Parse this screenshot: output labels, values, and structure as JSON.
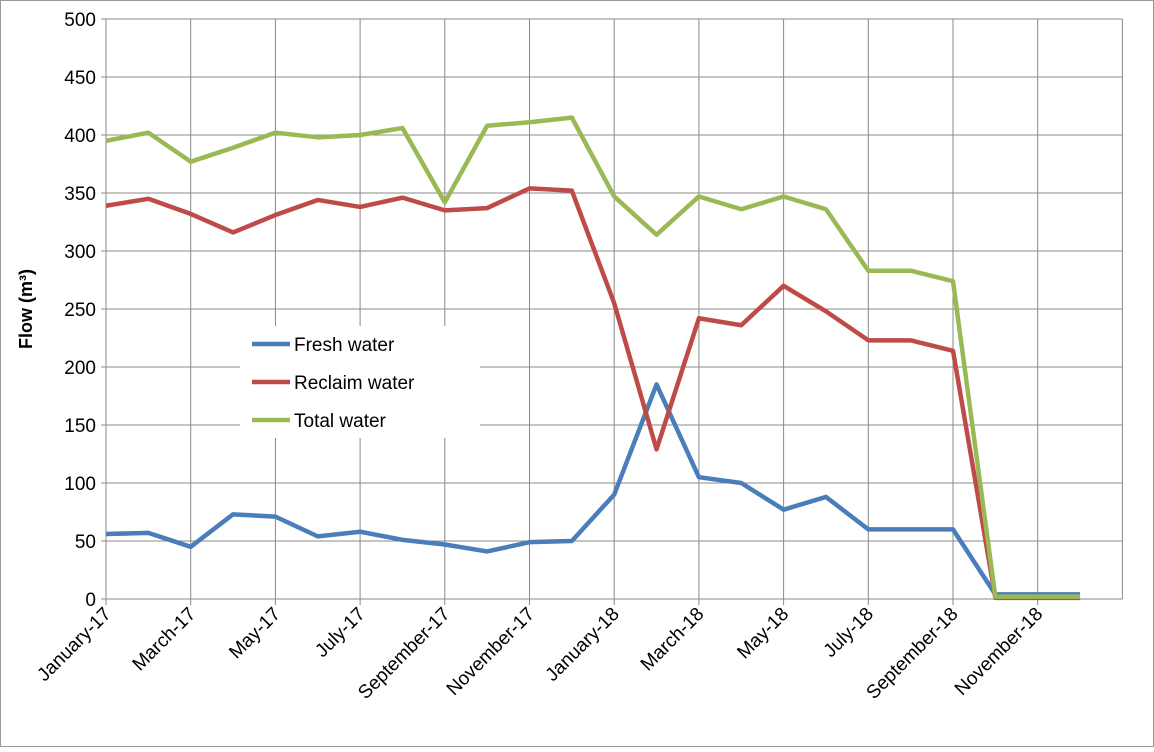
{
  "chart_data": {
    "type": "line",
    "ylabel": "Flow (m³)",
    "categories": [
      "January-17",
      null,
      "March-17",
      null,
      "May-17",
      null,
      "July-17",
      null,
      "September-17",
      null,
      "November-17",
      null,
      "January-18",
      null,
      "March-18",
      null,
      "May-18",
      null,
      "July-18",
      null,
      "September-18",
      null,
      "November-18",
      null
    ],
    "series": [
      {
        "name": "Fresh water",
        "color": "#4a7ebb",
        "values": [
          56,
          57,
          45,
          73,
          71,
          54,
          58,
          51,
          47,
          41,
          49,
          50,
          90,
          185,
          105,
          100,
          77,
          88,
          60,
          60,
          60,
          4,
          4,
          4
        ]
      },
      {
        "name": "Reclaim water",
        "color": "#be4b48",
        "values": [
          339,
          345,
          332,
          316,
          331,
          344,
          338,
          346,
          335,
          337,
          354,
          352,
          255,
          129,
          242,
          236,
          270,
          248,
          223,
          223,
          214,
          1,
          1,
          1
        ]
      },
      {
        "name": "Total water",
        "color": "#98b954",
        "values": [
          395,
          402,
          377,
          389,
          402,
          398,
          400,
          406,
          342,
          408,
          411,
          415,
          347,
          314,
          347,
          336,
          347,
          336,
          283,
          283,
          274,
          2,
          2,
          2
        ]
      }
    ],
    "ylim": [
      0,
      500
    ],
    "yticks": [
      0,
      50,
      100,
      150,
      200,
      250,
      300,
      350,
      400,
      450,
      500
    ],
    "grid": true,
    "legend": "center-left"
  }
}
